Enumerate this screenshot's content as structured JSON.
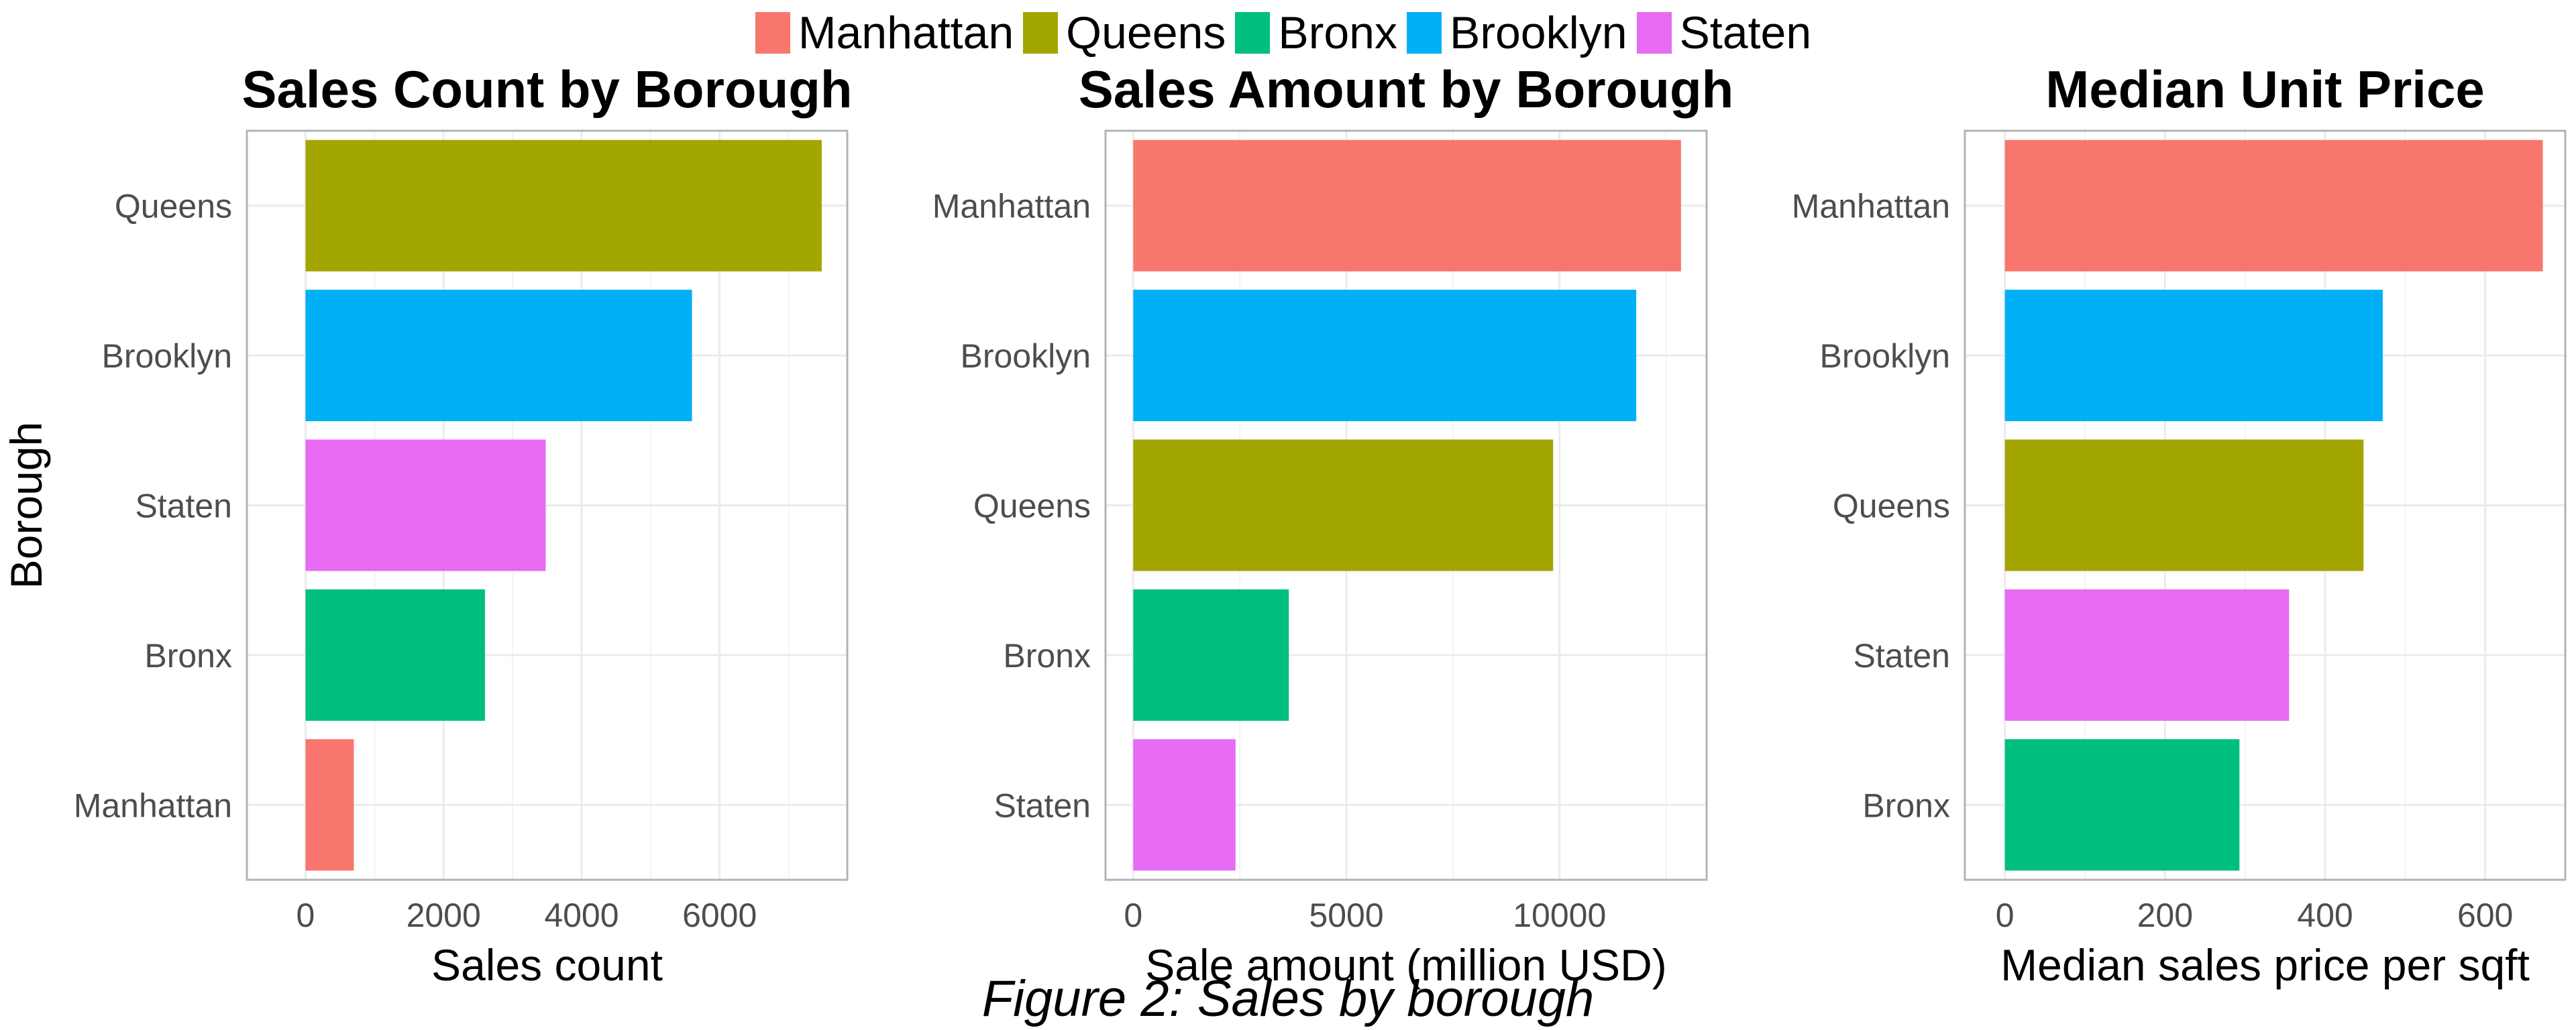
{
  "legend": {
    "items": [
      {
        "label": "Manhattan",
        "color": "#F8766D"
      },
      {
        "label": "Queens",
        "color": "#A3A500"
      },
      {
        "label": "Bronx",
        "color": "#00BF7D"
      },
      {
        "label": "Brooklyn",
        "color": "#00B0F6"
      },
      {
        "label": "Staten",
        "color": "#E76BF3"
      }
    ]
  },
  "caption": "Figure 2: Sales by borough",
  "chart_data": [
    {
      "type": "bar",
      "orientation": "horizontal",
      "title": "Sales Count by Borough",
      "xlabel": "Sales count",
      "ylabel": "Borough",
      "categories": [
        "Queens",
        "Brooklyn",
        "Staten",
        "Bronx",
        "Manhattan"
      ],
      "values": [
        7480,
        5600,
        3480,
        2600,
        700
      ],
      "xlim": [
        -850,
        7850
      ],
      "xticks": [
        0,
        2000,
        4000,
        6000
      ],
      "xtick_labels": [
        "0",
        "2000",
        "4000",
        "6000"
      ],
      "grid": true
    },
    {
      "type": "bar",
      "orientation": "horizontal",
      "title": "Sales Amount by Borough",
      "xlabel": "Sale amount (million USD)",
      "ylabel": "",
      "categories": [
        "Manhattan",
        "Brooklyn",
        "Queens",
        "Bronx",
        "Staten"
      ],
      "values": [
        12850,
        11800,
        9850,
        3650,
        2400
      ],
      "xlim": [
        -650,
        13450
      ],
      "xticks": [
        0,
        5000,
        10000
      ],
      "xtick_labels": [
        "0",
        "5000",
        "10000"
      ],
      "grid": true
    },
    {
      "type": "bar",
      "orientation": "horizontal",
      "title": "Median Unit Price",
      "xlabel": "Median sales price per sqft",
      "ylabel": "",
      "categories": [
        "Manhattan",
        "Brooklyn",
        "Queens",
        "Staten",
        "Bronx"
      ],
      "values": [
        672,
        472,
        448,
        355,
        293
      ],
      "xlim": [
        -50,
        700
      ],
      "xticks": [
        0,
        200,
        400,
        600
      ],
      "xtick_labels": [
        "0",
        "200",
        "400",
        "600"
      ],
      "grid": true
    }
  ]
}
